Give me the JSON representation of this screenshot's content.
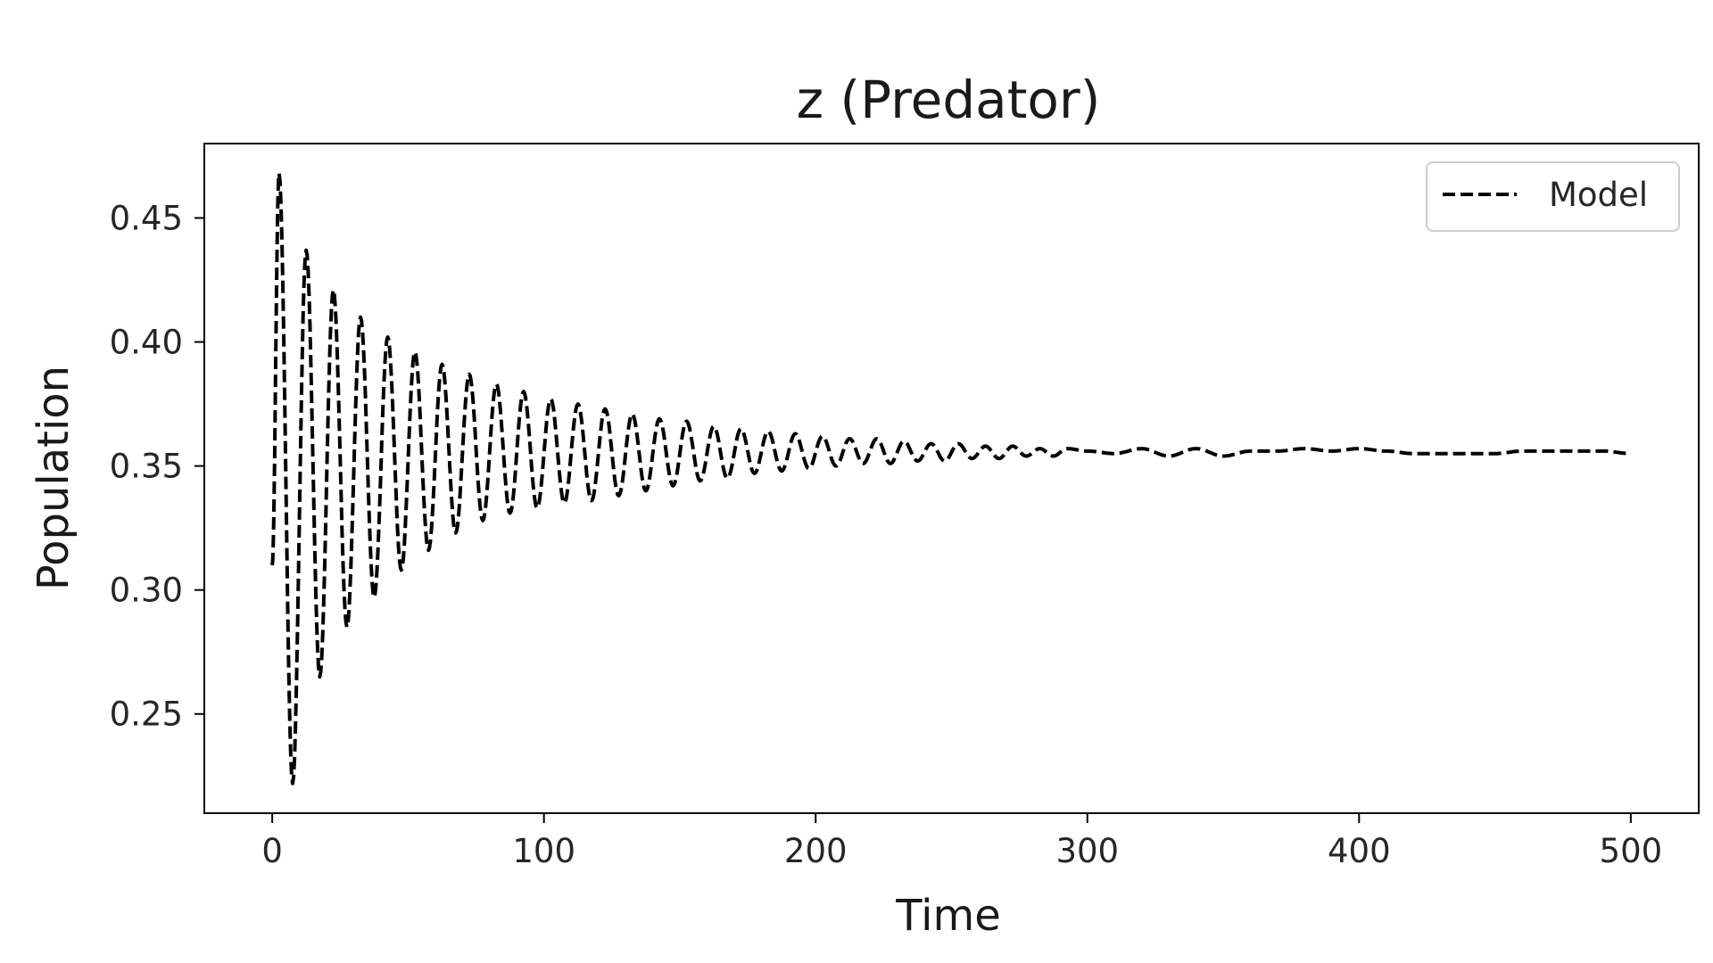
{
  "chart_data": {
    "type": "line",
    "title": "z (Predator)",
    "xlabel": "Time",
    "ylabel": "Population",
    "xlim": [
      -25,
      525
    ],
    "ylim": [
      0.21,
      0.48
    ],
    "xticks": [
      0,
      100,
      200,
      300,
      400,
      500
    ],
    "xtick_labels": [
      "0",
      "100",
      "200",
      "300",
      "400",
      "500"
    ],
    "yticks": [
      0.25,
      0.3,
      0.35,
      0.4,
      0.45
    ],
    "ytick_labels": [
      "0.25",
      "0.30",
      "0.35",
      "0.40",
      "0.45"
    ],
    "grid": false,
    "legend": {
      "location": "upper right",
      "entries": [
        "Model"
      ]
    },
    "series": [
      {
        "name": "Model",
        "color": "#000000",
        "line_style": "dashed",
        "x": [
          0,
          2.5,
          7.5,
          12.5,
          17.5,
          22.5,
          27.5,
          32.5,
          37.5,
          42.5,
          47.5,
          52.5,
          57.5,
          62.5,
          67.5,
          72.5,
          77.5,
          82.5,
          87.5,
          92.5,
          97.5,
          102.5,
          107.5,
          112.5,
          117.5,
          122.5,
          127.5,
          132.5,
          137.5,
          142.5,
          147.5,
          152.5,
          157.5,
          162.5,
          167.5,
          172.5,
          177.5,
          182.5,
          187.5,
          192.5,
          197.5,
          202.5,
          207.5,
          212.5,
          217.5,
          222.5,
          227.5,
          232.5,
          237.5,
          242.5,
          247.5,
          252.5,
          257.5,
          262.5,
          267.5,
          272.5,
          277.5,
          282.5,
          287.5,
          292.5,
          300,
          310,
          320,
          330,
          340,
          350,
          360,
          370,
          380,
          390,
          400,
          410,
          420,
          430,
          440,
          450,
          460,
          470,
          480,
          490,
          500
        ],
        "y": [
          0.31,
          0.468,
          0.222,
          0.437,
          0.265,
          0.421,
          0.285,
          0.41,
          0.297,
          0.402,
          0.308,
          0.396,
          0.316,
          0.391,
          0.323,
          0.387,
          0.328,
          0.383,
          0.331,
          0.38,
          0.333,
          0.377,
          0.335,
          0.375,
          0.336,
          0.373,
          0.338,
          0.371,
          0.34,
          0.369,
          0.342,
          0.368,
          0.344,
          0.366,
          0.345,
          0.365,
          0.347,
          0.364,
          0.348,
          0.363,
          0.349,
          0.362,
          0.35,
          0.361,
          0.351,
          0.361,
          0.351,
          0.36,
          0.352,
          0.359,
          0.352,
          0.359,
          0.353,
          0.358,
          0.353,
          0.358,
          0.354,
          0.357,
          0.354,
          0.357,
          0.356,
          0.355,
          0.357,
          0.354,
          0.357,
          0.354,
          0.356,
          0.356,
          0.357,
          0.356,
          0.357,
          0.356,
          0.355,
          0.355,
          0.355,
          0.355,
          0.356,
          0.356,
          0.356,
          0.356,
          0.355
        ]
      }
    ]
  }
}
